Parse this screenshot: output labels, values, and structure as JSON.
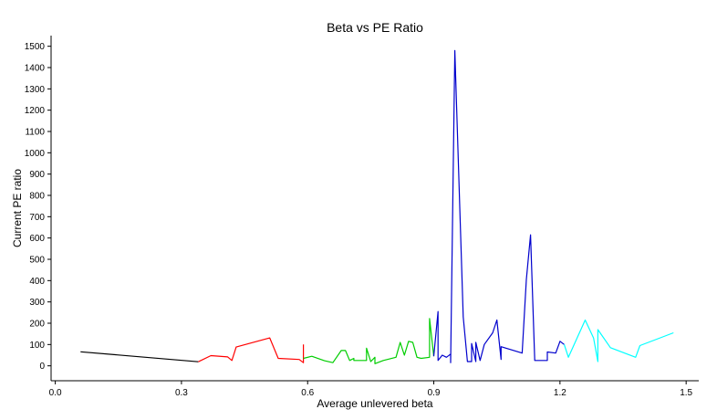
{
  "chart_data": {
    "type": "line",
    "title": "Beta vs PE Ratio",
    "xlabel": "Average unlevered beta",
    "ylabel": "Current PE ratio",
    "xlim": [
      -0.01,
      1.53
    ],
    "ylim": [
      -70,
      1550
    ],
    "x_ticks": [
      0.0,
      0.3,
      0.6,
      0.9,
      1.2,
      1.5
    ],
    "x_tick_labels": [
      "0.0",
      "0.3",
      "0.6",
      "0.9",
      "1.2",
      "1.5"
    ],
    "y_ticks": [
      0,
      100,
      200,
      300,
      400,
      500,
      600,
      700,
      800,
      900,
      1000,
      1100,
      1200,
      1300,
      1400,
      1500
    ],
    "y_tick_labels": [
      "0",
      "100",
      "200",
      "300",
      "400",
      "500",
      "600",
      "700",
      "800",
      "900",
      "1000",
      "1100",
      "1200",
      "1300",
      "1400",
      "1500"
    ],
    "grid": false,
    "legend": "none",
    "series": [
      {
        "color": "#000000",
        "points": [
          [
            0.06,
            66
          ],
          [
            0.34,
            19
          ]
        ]
      },
      {
        "color": "#ff0000",
        "points": [
          [
            0.34,
            19
          ],
          [
            0.37,
            48
          ],
          [
            0.41,
            42
          ],
          [
            0.42,
            25
          ],
          [
            0.43,
            88
          ],
          [
            0.51,
            131
          ],
          [
            0.53,
            35
          ],
          [
            0.58,
            30
          ],
          [
            0.59,
            15
          ],
          [
            0.59,
            100
          ]
        ]
      },
      {
        "color": "#00cd00",
        "points": [
          [
            0.59,
            35
          ],
          [
            0.61,
            45
          ],
          [
            0.64,
            24
          ],
          [
            0.66,
            15
          ],
          [
            0.68,
            72
          ],
          [
            0.69,
            72
          ],
          [
            0.7,
            25
          ],
          [
            0.71,
            35
          ],
          [
            0.71,
            25
          ],
          [
            0.74,
            25
          ],
          [
            0.74,
            83
          ],
          [
            0.75,
            20
          ],
          [
            0.76,
            40
          ],
          [
            0.76,
            10
          ],
          [
            0.78,
            25
          ],
          [
            0.81,
            40
          ],
          [
            0.82,
            110
          ],
          [
            0.83,
            50
          ],
          [
            0.84,
            115
          ],
          [
            0.85,
            110
          ],
          [
            0.86,
            40
          ],
          [
            0.87,
            35
          ],
          [
            0.89,
            40
          ],
          [
            0.89,
            222
          ],
          [
            0.9,
            45
          ]
        ]
      },
      {
        "color": "#0000cd",
        "points": [
          [
            0.9,
            45
          ],
          [
            0.91,
            255
          ],
          [
            0.91,
            25
          ],
          [
            0.92,
            50
          ],
          [
            0.93,
            40
          ],
          [
            0.94,
            55
          ],
          [
            0.94,
            15
          ],
          [
            0.95,
            1480
          ],
          [
            0.97,
            230
          ],
          [
            0.98,
            20
          ],
          [
            0.99,
            20
          ],
          [
            0.99,
            105
          ],
          [
            1.0,
            20
          ],
          [
            1.0,
            110
          ],
          [
            1.01,
            25
          ],
          [
            1.02,
            100
          ],
          [
            1.04,
            155
          ],
          [
            1.05,
            215
          ],
          [
            1.06,
            30
          ],
          [
            1.06,
            90
          ],
          [
            1.11,
            60
          ],
          [
            1.12,
            405
          ],
          [
            1.13,
            615
          ],
          [
            1.14,
            25
          ],
          [
            1.17,
            25
          ],
          [
            1.17,
            65
          ],
          [
            1.19,
            60
          ],
          [
            1.2,
            115
          ],
          [
            1.21,
            100
          ]
        ]
      },
      {
        "color": "#00ffff",
        "points": [
          [
            1.21,
            100
          ],
          [
            1.22,
            40
          ],
          [
            1.26,
            215
          ],
          [
            1.28,
            130
          ],
          [
            1.29,
            20
          ],
          [
            1.29,
            170
          ],
          [
            1.32,
            85
          ],
          [
            1.38,
            40
          ],
          [
            1.39,
            95
          ],
          [
            1.47,
            155
          ]
        ]
      }
    ]
  }
}
